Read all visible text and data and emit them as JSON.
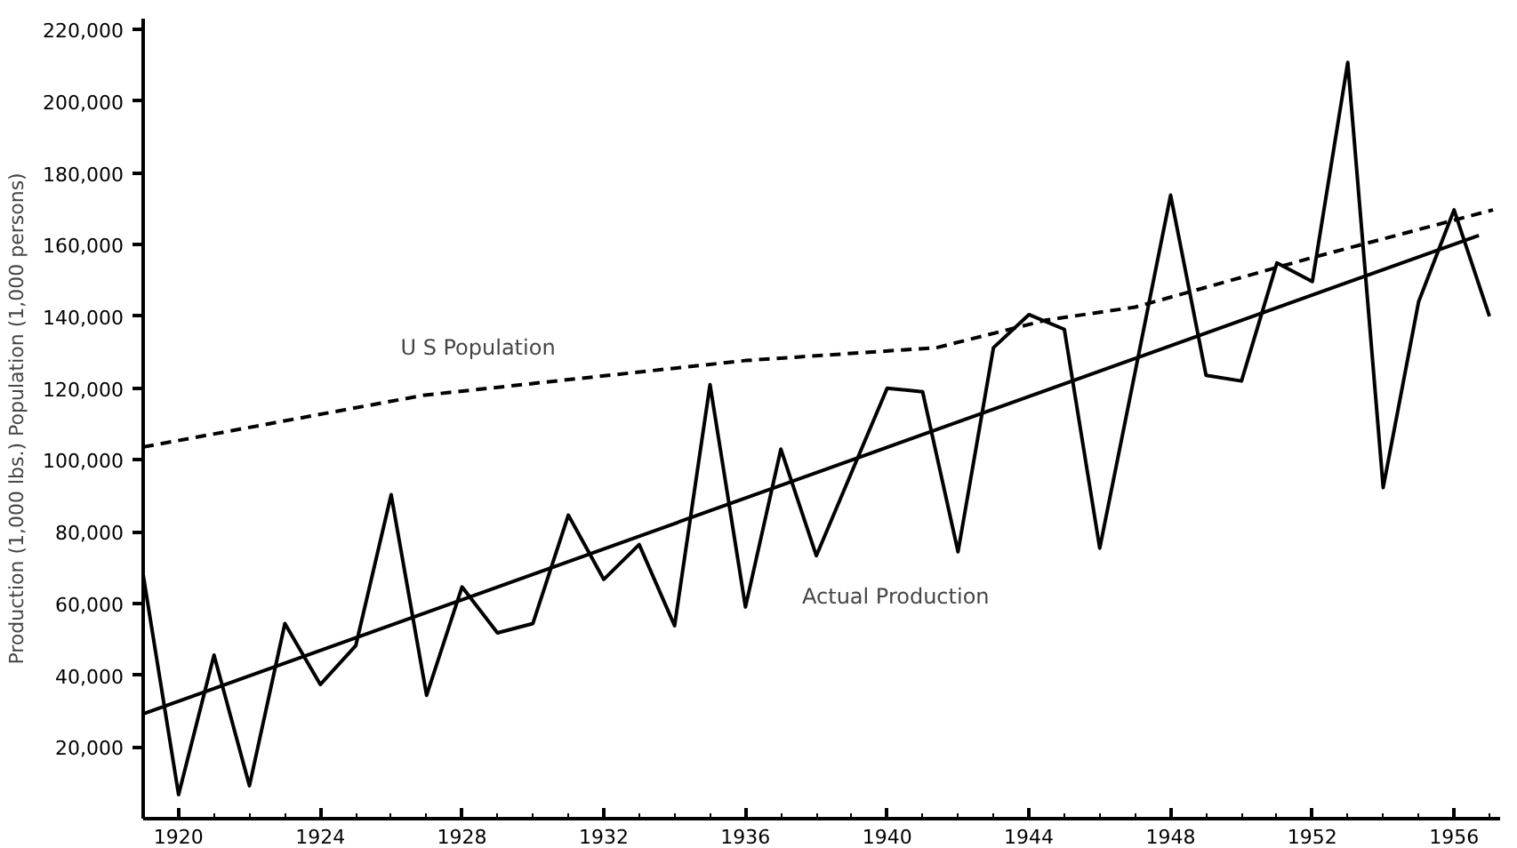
{
  "chart_data": {
    "type": "line",
    "ylabel": "Production (1,000 lbs.) Population (1,000 persons)",
    "xlim": [
      1919,
      1957.3
    ],
    "ylim": [
      0,
      223000
    ],
    "xticks": [
      1920,
      1924,
      1928,
      1932,
      1936,
      1940,
      1944,
      1948,
      1952,
      1956
    ],
    "yticks": [
      {
        "value": 20000,
        "label": "20,000"
      },
      {
        "value": 40000,
        "label": "40,000"
      },
      {
        "value": 60000,
        "label": "60,000"
      },
      {
        "value": 80000,
        "label": "80,000"
      },
      {
        "value": 100000,
        "label": "100,000"
      },
      {
        "value": 120000,
        "label": "120,000"
      },
      {
        "value": 140000,
        "label": "140,000"
      },
      {
        "value": 160000,
        "label": "160,000"
      },
      {
        "value": 180000,
        "label": "180,000"
      },
      {
        "value": 200000,
        "label": "200,000"
      },
      {
        "value": 220000,
        "label": "220,000"
      }
    ],
    "grid": false,
    "legend": false,
    "marker": "none",
    "series": [
      {
        "name": "Actual Production",
        "color": "#000000",
        "line_style": "solid",
        "x": [
          1919,
          1920,
          1921,
          1922,
          1923,
          1924,
          1925,
          1926,
          1927,
          1928,
          1929,
          1930,
          1931,
          1932,
          1933,
          1934,
          1935,
          1936,
          1937,
          1938,
          1940,
          1941,
          1942,
          1943,
          1944,
          1945,
          1946,
          1948,
          1949,
          1950,
          1951,
          1952,
          1953,
          1954,
          1955,
          1956,
          1957
        ],
        "values": [
          68000,
          6700,
          45600,
          9200,
          54400,
          37400,
          48200,
          90300,
          34400,
          64600,
          51800,
          54400,
          84600,
          66700,
          76400,
          53800,
          121000,
          59000,
          103000,
          73300,
          120000,
          119000,
          74400,
          131300,
          140500,
          136400,
          75400,
          173800,
          123600,
          122000,
          154900,
          149700,
          210800,
          92300,
          144100,
          169700,
          140000
        ]
      },
      {
        "name": "U S Population",
        "color": "#000000",
        "line_style": "dashed",
        "x": [
          1919,
          1926.9,
          1936,
          1941.4,
          1944.5,
          1947,
          1952,
          1957.1
        ],
        "values": [
          103600,
          118000,
          127700,
          131300,
          139000,
          142600,
          156400,
          169700
        ]
      },
      {
        "color": "#000000",
        "line_style": "solid",
        "x": [
          1919,
          1956.7
        ],
        "values": [
          29200,
          162600
        ]
      }
    ]
  }
}
